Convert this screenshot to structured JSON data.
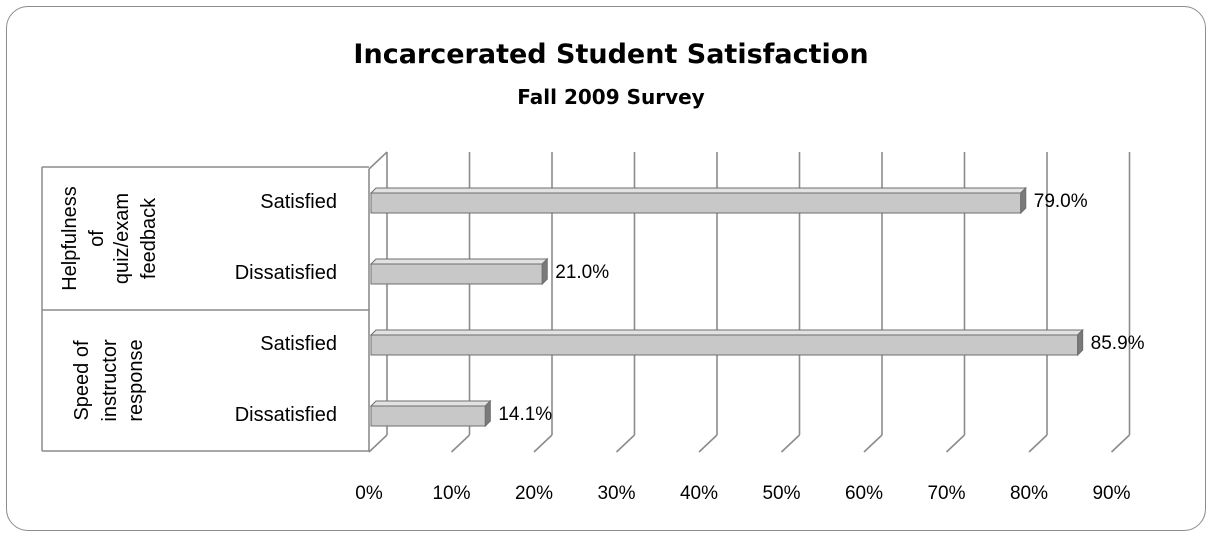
{
  "chart_data": {
    "type": "bar",
    "orientation": "horizontal",
    "style": "3d-clustered",
    "title": "Incarcerated Student Satisfaction",
    "subtitle": "Fall 2009 Survey",
    "groups": [
      {
        "label_lines": [
          "Helpfulness",
          "of",
          "quiz/exam",
          "feedback"
        ],
        "categories": [
          "Satisfied",
          "Dissatisfied"
        ],
        "values": [
          79.0,
          21.0
        ],
        "value_labels": [
          "79.0%",
          "21.0%"
        ]
      },
      {
        "label_lines": [
          "Speed of",
          "instructor",
          "response"
        ],
        "categories": [
          "Satisfied",
          "Dissatisfied"
        ],
        "values": [
          85.9,
          14.1
        ],
        "value_labels": [
          "85.9%",
          "14.1%"
        ]
      }
    ],
    "xlim": [
      0,
      90
    ],
    "xticks": [
      0,
      10,
      20,
      30,
      40,
      50,
      60,
      70,
      80,
      90
    ],
    "xtick_labels": [
      "0%",
      "10%",
      "20%",
      "30%",
      "40%",
      "50%",
      "60%",
      "70%",
      "80%",
      "90%"
    ],
    "grid": true,
    "legend": "none",
    "bar_color": "#c8c8c8",
    "bar_edge_color": "#6e6e6e",
    "bar_side_color": "#7a7a7a",
    "grid_color": "#8c8c8c"
  }
}
